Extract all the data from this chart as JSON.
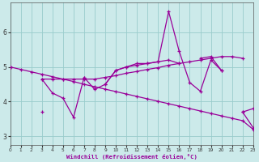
{
  "xlabel": "Windchill (Refroidissement éolien,°C)",
  "x": [
    0,
    1,
    2,
    3,
    4,
    5,
    6,
    7,
    8,
    9,
    10,
    11,
    12,
    13,
    14,
    15,
    16,
    17,
    18,
    19,
    20,
    21,
    22,
    23
  ],
  "bg_color": "#cceaea",
  "line_color": "#990099",
  "grid_color": "#99cccc",
  "ylim": [
    2.75,
    6.85
  ],
  "xlim": [
    0,
    23
  ],
  "yticks": [
    3,
    4,
    5,
    6
  ],
  "xticks": [
    0,
    1,
    2,
    3,
    4,
    5,
    6,
    7,
    8,
    9,
    10,
    11,
    12,
    13,
    14,
    15,
    16,
    17,
    18,
    19,
    20,
    21,
    22,
    23
  ],
  "series": [
    {
      "y": [
        5.0,
        null,
        null,
        3.7,
        null,
        null,
        null,
        4.7,
        null,
        4.5,
        4.9,
        5.0,
        5.1,
        5.1,
        5.15,
        5.2,
        5.1,
        null,
        5.25,
        5.3,
        4.9,
        null,
        3.7,
        3.8
      ]
    },
    {
      "y": [
        5.0,
        null,
        null,
        4.65,
        4.65,
        4.65,
        4.65,
        4.65,
        4.65,
        4.7,
        4.75,
        4.82,
        4.87,
        4.93,
        4.98,
        5.05,
        5.1,
        5.15,
        5.2,
        5.25,
        5.3,
        5.3,
        5.25,
        null
      ]
    },
    {
      "y": [
        5.0,
        null,
        null,
        4.65,
        4.25,
        4.1,
        3.55,
        4.7,
        4.35,
        4.5,
        4.9,
        5.0,
        5.05,
        5.1,
        5.15,
        6.6,
        5.45,
        4.55,
        4.3,
        5.2,
        4.9,
        null,
        3.7,
        3.25
      ]
    },
    {
      "y": [
        5.0,
        4.93,
        4.86,
        4.79,
        4.72,
        4.65,
        4.58,
        4.5,
        4.43,
        4.36,
        4.29,
        4.22,
        4.15,
        4.08,
        4.01,
        3.94,
        3.87,
        3.8,
        3.73,
        3.66,
        3.59,
        3.52,
        3.45,
        3.2
      ]
    }
  ]
}
